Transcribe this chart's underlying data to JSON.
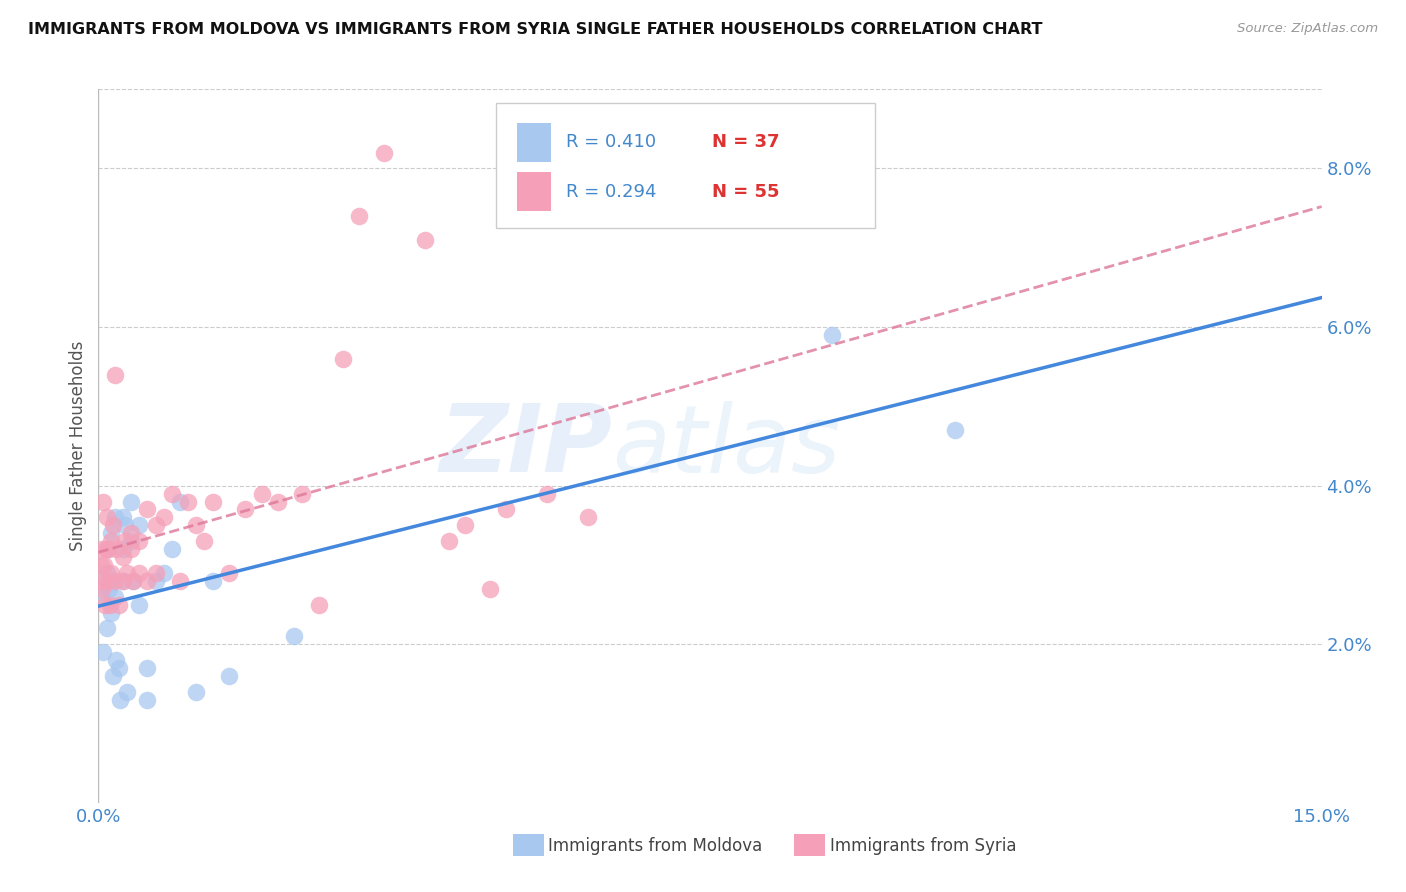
{
  "title": "IMMIGRANTS FROM MOLDOVA VS IMMIGRANTS FROM SYRIA SINGLE FATHER HOUSEHOLDS CORRELATION CHART",
  "source": "Source: ZipAtlas.com",
  "ylabel": "Single Father Households",
  "xlim": [
    0.0,
    0.15
  ],
  "ylim": [
    0.0,
    0.09
  ],
  "color_moldova": "#a8c8f0",
  "color_syria": "#f5a0b8",
  "color_trendline_moldova": "#4488dd",
  "color_trendline_syria": "#dd7799",
  "watermark_zip": "ZIP",
  "watermark_atlas": "atlas",
  "legend_r1": "R = 0.410",
  "legend_n1": "N = 37",
  "legend_r2": "R = 0.294",
  "legend_n2": "N = 55",
  "legend_label1": "Immigrants from Moldova",
  "legend_label2": "Immigrants from Syria",
  "moldova_x": [
    0.0004,
    0.0006,
    0.001,
    0.001,
    0.0012,
    0.0013,
    0.0015,
    0.0015,
    0.0016,
    0.0018,
    0.002,
    0.002,
    0.0022,
    0.0025,
    0.0026,
    0.003,
    0.003,
    0.003,
    0.0032,
    0.0035,
    0.004,
    0.004,
    0.0042,
    0.005,
    0.005,
    0.006,
    0.006,
    0.007,
    0.008,
    0.009,
    0.01,
    0.012,
    0.014,
    0.016,
    0.024,
    0.09,
    0.105
  ],
  "moldova_y": [
    0.026,
    0.019,
    0.029,
    0.022,
    0.032,
    0.027,
    0.028,
    0.024,
    0.034,
    0.016,
    0.036,
    0.026,
    0.018,
    0.017,
    0.013,
    0.028,
    0.036,
    0.032,
    0.035,
    0.014,
    0.038,
    0.033,
    0.028,
    0.035,
    0.025,
    0.017,
    0.013,
    0.028,
    0.029,
    0.032,
    0.038,
    0.014,
    0.028,
    0.016,
    0.021,
    0.059,
    0.047
  ],
  "syria_x": [
    0.0002,
    0.0003,
    0.0004,
    0.0005,
    0.0006,
    0.0007,
    0.0008,
    0.0009,
    0.001,
    0.001,
    0.0012,
    0.0014,
    0.0015,
    0.0016,
    0.0018,
    0.002,
    0.002,
    0.0022,
    0.0025,
    0.003,
    0.003,
    0.0032,
    0.0035,
    0.004,
    0.004,
    0.0042,
    0.005,
    0.005,
    0.006,
    0.006,
    0.007,
    0.007,
    0.008,
    0.009,
    0.01,
    0.011,
    0.012,
    0.013,
    0.014,
    0.016,
    0.018,
    0.02,
    0.022,
    0.025,
    0.027,
    0.03,
    0.032,
    0.035,
    0.04,
    0.043,
    0.045,
    0.048,
    0.05,
    0.055,
    0.06
  ],
  "syria_y": [
    0.028,
    0.03,
    0.032,
    0.027,
    0.038,
    0.03,
    0.025,
    0.032,
    0.036,
    0.028,
    0.032,
    0.025,
    0.033,
    0.029,
    0.035,
    0.028,
    0.054,
    0.032,
    0.025,
    0.031,
    0.028,
    0.033,
    0.029,
    0.032,
    0.034,
    0.028,
    0.029,
    0.033,
    0.028,
    0.037,
    0.035,
    0.029,
    0.036,
    0.039,
    0.028,
    0.038,
    0.035,
    0.033,
    0.038,
    0.029,
    0.037,
    0.039,
    0.038,
    0.039,
    0.025,
    0.056,
    0.074,
    0.082,
    0.071,
    0.033,
    0.035,
    0.027,
    0.037,
    0.039,
    0.036
  ]
}
